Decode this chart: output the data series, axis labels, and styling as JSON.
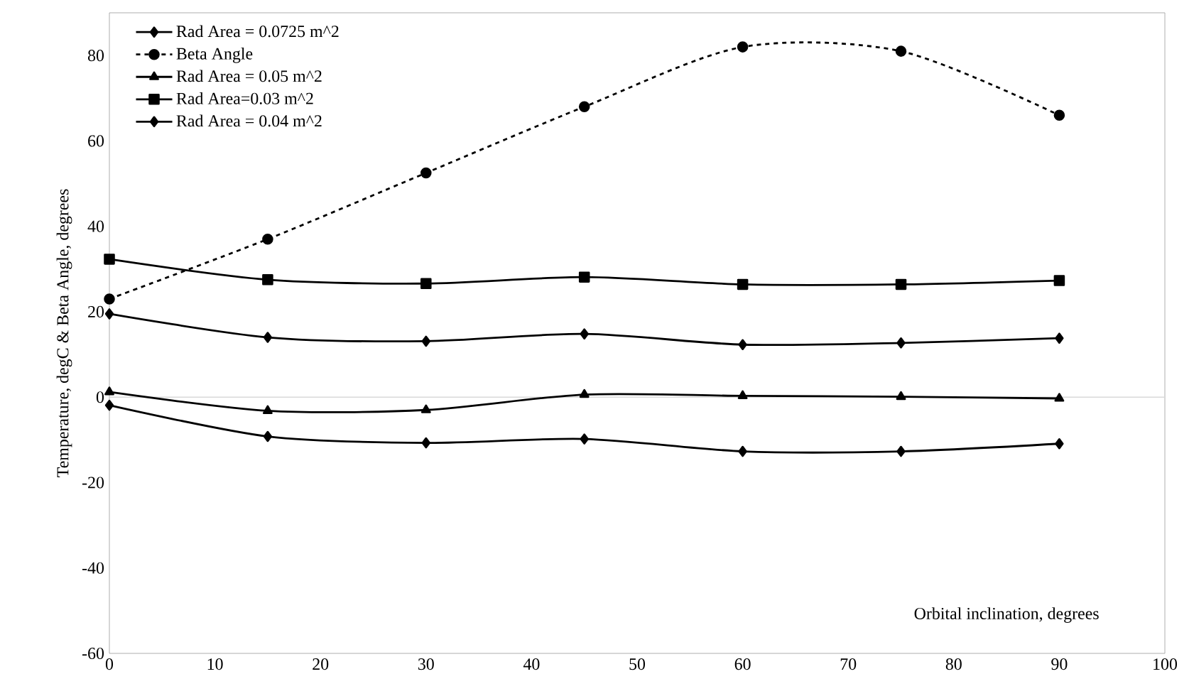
{
  "chart_data": {
    "type": "line",
    "xlabel": "Orbital inclination, degrees",
    "ylabel": "Temperature, degC & Beta Angle, degrees",
    "x": [
      0,
      15,
      30,
      45,
      60,
      75,
      90
    ],
    "series": [
      {
        "name": "Rad Area = 0.0725 m^2",
        "color": "#000000",
        "marker": "diamond",
        "line_style": "solid",
        "values": [
          -1.9,
          -9.2,
          -10.7,
          -9.8,
          -12.7,
          -12.7,
          -10.9
        ]
      },
      {
        "name": "Beta Angle",
        "color": "#000000",
        "marker": "circle",
        "line_style": "dashed",
        "values": [
          23,
          37,
          52.5,
          68,
          82,
          81,
          66
        ]
      },
      {
        "name": "Rad Area = 0.05 m^2",
        "color": "#000000",
        "marker": "triangle",
        "line_style": "solid",
        "values": [
          1.2,
          -3.2,
          -3,
          0.6,
          0.3,
          0.1,
          -0.3
        ]
      },
      {
        "name": "Rad Area=0.03 m^2",
        "color": "#000000",
        "marker": "square",
        "line_style": "solid",
        "values": [
          32.3,
          27.5,
          26.6,
          28.1,
          26.4,
          26.4,
          27.3
        ]
      },
      {
        "name": "Rad Area = 0.04 m^2",
        "color": "#000000",
        "marker": "diamond",
        "line_style": "solid",
        "values": [
          19.5,
          14,
          13.1,
          14.8,
          12.3,
          12.7,
          13.8
        ]
      }
    ],
    "xlim": [
      0,
      100
    ],
    "xticks": [
      0,
      10,
      20,
      30,
      40,
      50,
      60,
      70,
      80,
      90,
      100
    ],
    "ylim": [
      -60,
      90
    ],
    "yticks": [
      -60,
      -40,
      -20,
      0,
      20,
      40,
      60,
      80
    ],
    "ref_lines": [
      {
        "axis": "y",
        "value": 0,
        "color": "#d9d9d9"
      }
    ],
    "legend": "top left"
  }
}
